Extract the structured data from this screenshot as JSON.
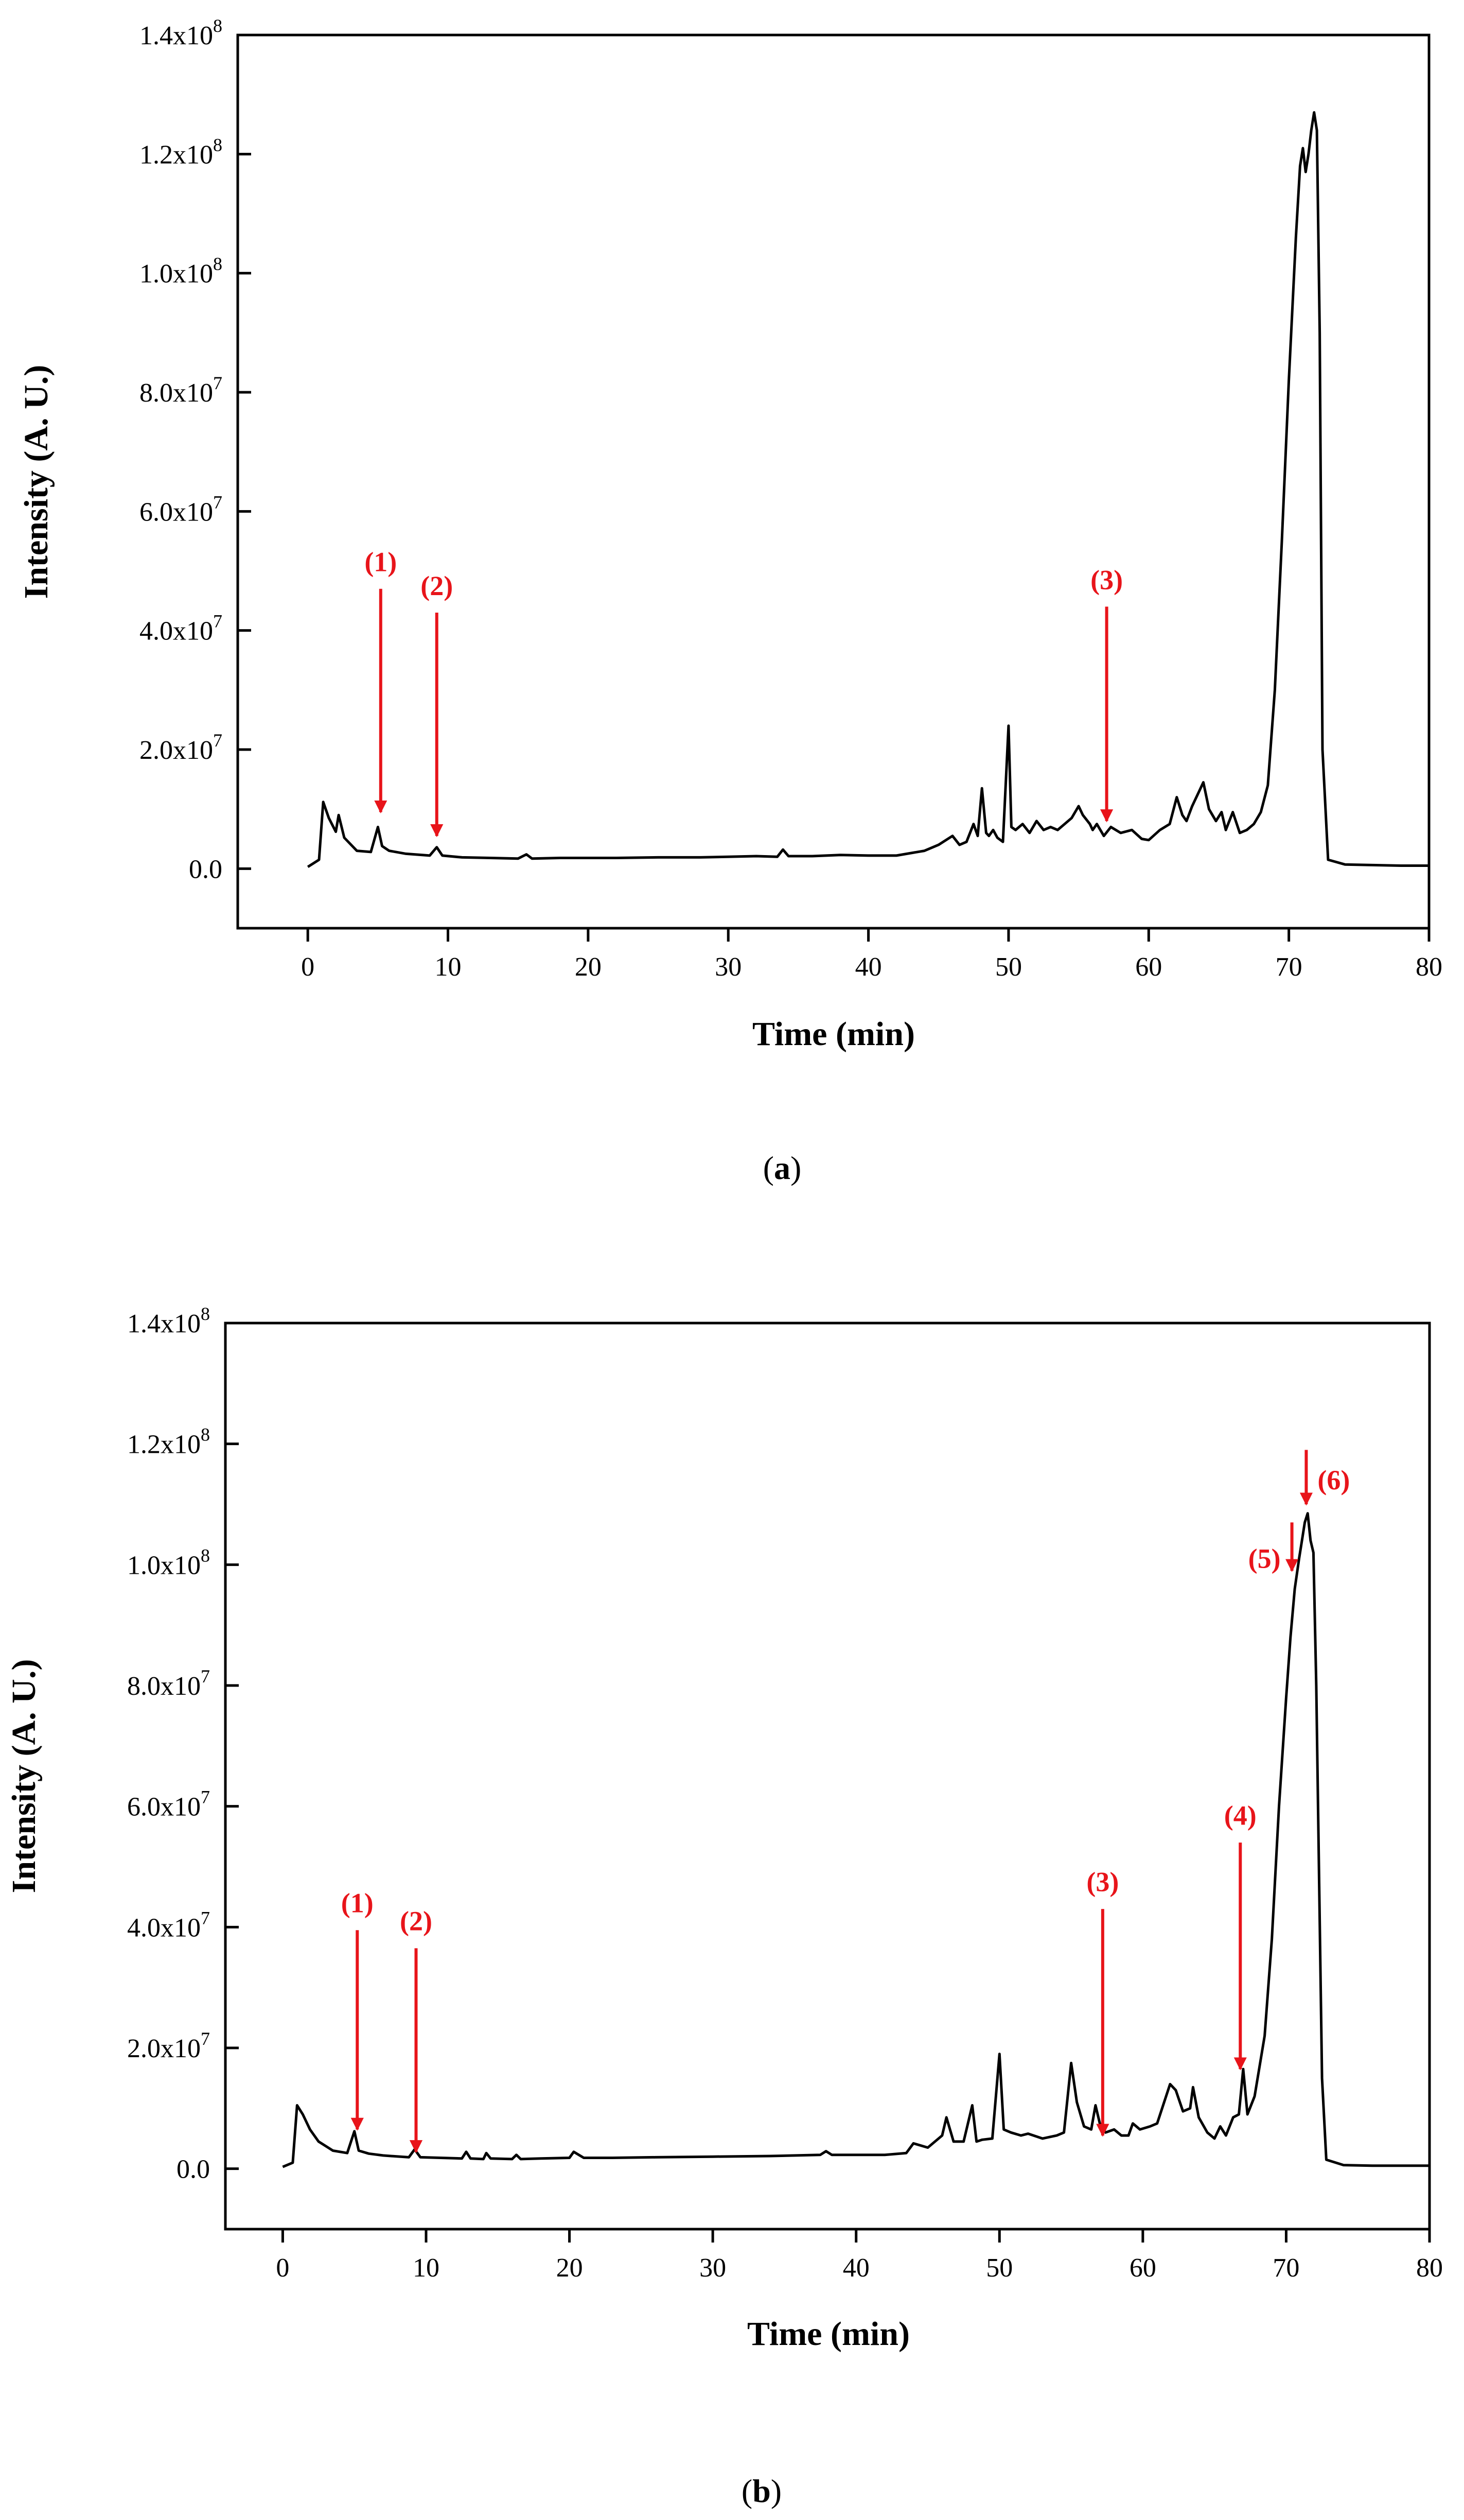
{
  "colors": {
    "annotation": "#e8141a",
    "trace": "#000000",
    "axis": "#000000"
  },
  "chart_data": [
    {
      "type": "line",
      "caption": "a",
      "xlabel": "Time (min)",
      "ylabel": "Intensity (A. U.)",
      "xlim": [
        -5,
        80
      ],
      "ylim": [
        -10000000,
        140000000
      ],
      "xticks": [
        0,
        10,
        20,
        30,
        40,
        50,
        60,
        70,
        80
      ],
      "yticks": [
        {
          "value": 0,
          "mantissa": "0.0",
          "exp": ""
        },
        {
          "value": 20000000,
          "mantissa": "2.0x10",
          "exp": "7"
        },
        {
          "value": 40000000,
          "mantissa": "4.0x10",
          "exp": "7"
        },
        {
          "value": 60000000,
          "mantissa": "6.0x10",
          "exp": "7"
        },
        {
          "value": 80000000,
          "mantissa": "8.0x10",
          "exp": "7"
        },
        {
          "value": 100000000,
          "mantissa": "1.0x10",
          "exp": "8"
        },
        {
          "value": 120000000,
          "mantissa": "1.2x10",
          "exp": "8"
        },
        {
          "value": 140000000,
          "mantissa": "1.4x10",
          "exp": "8"
        }
      ],
      "series": [
        {
          "name": "chromatogram",
          "x": [
            0,
            0.8,
            1.1,
            1.5,
            2.0,
            2.2,
            2.6,
            3.5,
            4.5,
            5.0,
            5.3,
            5.8,
            7,
            8.7,
            9.2,
            9.6,
            11,
            13,
            15,
            15.6,
            16,
            18,
            20,
            22,
            25,
            28,
            30,
            32,
            33.5,
            33.9,
            34.3,
            36,
            38,
            40,
            42,
            44,
            45,
            46,
            46.5,
            47,
            47.5,
            47.8,
            48.1,
            48.4,
            48.6,
            48.9,
            49.2,
            49.6,
            50.0,
            50.2,
            50.5,
            51,
            51.5,
            52,
            52.5,
            53,
            53.5,
            54,
            54.5,
            55,
            55.3,
            55.8,
            56,
            56.3,
            56.8,
            57.3,
            58,
            58.8,
            59.5,
            60,
            60.8,
            61.5,
            62,
            62.4,
            62.7,
            63.1,
            63.5,
            63.9,
            64.3,
            64.8,
            65.2,
            65.5,
            66,
            66.5,
            67,
            67.5,
            68,
            68.5,
            69,
            69.5,
            70,
            70.5,
            70.8,
            71.0,
            71.2,
            71.4,
            71.6,
            71.8,
            72.0,
            72.2,
            72.4,
            72.8,
            74,
            76,
            78,
            80
          ],
          "y": [
            0.3,
            1.5,
            11.2,
            8.5,
            6.2,
            9.0,
            5.2,
            3.0,
            2.8,
            7.0,
            3.8,
            3.0,
            2.5,
            2.2,
            3.6,
            2.2,
            1.9,
            1.8,
            1.7,
            2.4,
            1.7,
            1.8,
            1.8,
            1.8,
            1.9,
            1.9,
            2.0,
            2.1,
            2.0,
            3.2,
            2.1,
            2.1,
            2.3,
            2.2,
            2.2,
            3.0,
            4.0,
            5.5,
            4.0,
            4.5,
            7.5,
            5.5,
            13.5,
            6.0,
            5.5,
            6.5,
            5.2,
            4.5,
            24.0,
            7.0,
            6.5,
            7.5,
            6.0,
            8.0,
            6.5,
            7.0,
            6.5,
            7.5,
            8.5,
            10.5,
            9.0,
            7.5,
            6.5,
            7.5,
            5.5,
            7.0,
            6.0,
            6.5,
            5.0,
            4.8,
            6.5,
            7.5,
            12.0,
            9.0,
            8.0,
            10.5,
            12.5,
            14.5,
            10.0,
            8.0,
            9.5,
            6.5,
            9.5,
            6.0,
            6.5,
            7.5,
            9.5,
            14.0,
            30.0,
            55.0,
            82.0,
            106.0,
            118.0,
            121.0,
            117.0,
            120.0,
            124.0,
            127.0,
            124.0,
            90.0,
            20.0,
            1.5,
            0.7,
            0.6,
            0.5,
            0.5
          ]
        }
      ],
      "annotations": [
        {
          "label": "(1)",
          "x": 5.2,
          "y_tip": 9.5,
          "y_tail": 47.0,
          "label_y": 51.5
        },
        {
          "label": "(2)",
          "x": 9.2,
          "y_tip": 5.5,
          "y_tail": 43.0,
          "label_y": 47.5
        },
        {
          "label": "(3)",
          "x": 57.0,
          "y_tip": 8.0,
          "y_tail": 44.0,
          "label_y": 48.5
        }
      ]
    },
    {
      "type": "line",
      "caption": "b",
      "xlabel": "Time (min)",
      "ylabel": "Intensity (A. U.)",
      "xlim": [
        -4,
        80
      ],
      "ylim": [
        -10000000,
        140000000
      ],
      "xticks": [
        0,
        10,
        20,
        30,
        40,
        50,
        60,
        70,
        80
      ],
      "yticks": [
        {
          "value": 0,
          "mantissa": "0.0",
          "exp": ""
        },
        {
          "value": 20000000,
          "mantissa": "2.0x10",
          "exp": "7"
        },
        {
          "value": 40000000,
          "mantissa": "4.0x10",
          "exp": "7"
        },
        {
          "value": 60000000,
          "mantissa": "6.0x10",
          "exp": "7"
        },
        {
          "value": 80000000,
          "mantissa": "8.0x10",
          "exp": "7"
        },
        {
          "value": 100000000,
          "mantissa": "1.0x10",
          "exp": "8"
        },
        {
          "value": 120000000,
          "mantissa": "1.2x10",
          "exp": "8"
        },
        {
          "value": 140000000,
          "mantissa": "1.4x10",
          "exp": "8"
        }
      ],
      "series": [
        {
          "name": "chromatogram",
          "x": [
            0,
            0.7,
            1.0,
            1.4,
            1.9,
            2.5,
            3.5,
            4.5,
            5.0,
            5.3,
            6,
            7,
            8.8,
            9.2,
            9.6,
            11,
            12.5,
            12.8,
            13.1,
            14,
            14.2,
            14.5,
            16,
            16.3,
            16.6,
            18,
            20,
            20.3,
            21,
            23,
            26,
            30,
            34,
            37.5,
            37.9,
            38.3,
            40,
            42,
            43.5,
            44,
            45,
            46,
            46.3,
            46.8,
            47.5,
            48.1,
            48.4,
            48.8,
            49.5,
            50.0,
            50.3,
            50.8,
            51.5,
            52,
            53,
            54,
            54.5,
            55.0,
            55.4,
            55.9,
            56.4,
            56.7,
            57.0,
            57.4,
            58,
            58.5,
            59,
            59.3,
            59.8,
            60.5,
            61,
            61.9,
            62.3,
            62.8,
            63.3,
            63.5,
            63.9,
            64.5,
            65.0,
            65.4,
            65.8,
            66.3,
            66.7,
            67.0,
            67.3,
            67.8,
            68.5,
            69,
            69.5,
            70,
            70.3,
            70.6,
            70.9,
            71.1,
            71.3,
            71.5,
            71.7,
            71.9,
            72.1,
            72.5,
            72.8,
            74,
            76,
            78,
            80
          ],
          "y": [
            0.3,
            1.0,
            10.5,
            9.0,
            6.5,
            4.5,
            3.0,
            2.6,
            6.2,
            3.0,
            2.5,
            2.2,
            1.9,
            3.2,
            1.9,
            1.8,
            1.7,
            2.8,
            1.7,
            1.6,
            2.6,
            1.7,
            1.6,
            2.3,
            1.6,
            1.7,
            1.8,
            2.8,
            1.8,
            1.8,
            1.9,
            2.0,
            2.1,
            2.3,
            2.9,
            2.3,
            2.3,
            2.3,
            2.6,
            4.2,
            3.5,
            5.5,
            8.5,
            4.5,
            4.5,
            10.5,
            4.5,
            4.8,
            5.0,
            19.0,
            6.5,
            6.0,
            5.5,
            5.8,
            5.0,
            5.5,
            6.0,
            17.5,
            11.0,
            7.0,
            6.5,
            10.5,
            7.5,
            6.0,
            6.5,
            5.5,
            5.5,
            7.5,
            6.5,
            7.0,
            7.5,
            14.0,
            13.0,
            9.5,
            10.0,
            13.5,
            8.5,
            6.0,
            5.0,
            7.0,
            5.5,
            8.5,
            9.0,
            16.5,
            9.0,
            12.0,
            22.0,
            38.0,
            60.0,
            78.0,
            88.0,
            96.0,
            101.0,
            104.0,
            107.0,
            108.5,
            104.0,
            102.0,
            80.0,
            15.0,
            1.5,
            0.6,
            0.5,
            0.5,
            0.5
          ]
        }
      ],
      "annotations": [
        {
          "label": "(1)",
          "x": 5.2,
          "y_tip": 6.5,
          "y_tail": 39.5,
          "label_y": 44.0
        },
        {
          "label": "(2)",
          "x": 9.3,
          "y_tip": 2.8,
          "y_tail": 36.5,
          "label_y": 41.0
        },
        {
          "label": "(3)",
          "x": 57.2,
          "y_tip": 5.5,
          "y_tail": 43.0,
          "label_y": 47.5
        },
        {
          "label": "(4)",
          "x": 66.8,
          "y_tip": 16.5,
          "y_tail": 54.0,
          "label_y": 58.5
        },
        {
          "label": "(5)",
          "x": 70.4,
          "y_tip": 99.0,
          "y_tail": 107.0,
          "label_y": 101.0
        },
        {
          "label": "(6)",
          "x": 71.4,
          "y_tip": 110.0,
          "y_tail": 119.0,
          "label_y": 114.0
        }
      ]
    }
  ]
}
